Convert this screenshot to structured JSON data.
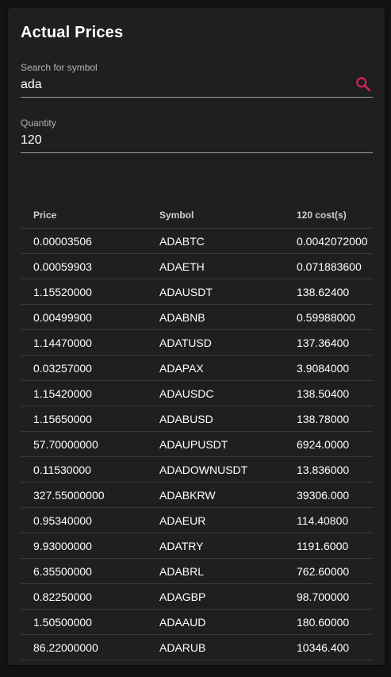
{
  "title": "Actual Prices",
  "search": {
    "label": "Search for symbol",
    "value": "ada",
    "icon": "search-icon",
    "icon_color": "#e91e63"
  },
  "quantity": {
    "label": "Quantity",
    "value": "120"
  },
  "table": {
    "headers": [
      "Price",
      "Symbol",
      "120 cost(s)"
    ],
    "rows": [
      [
        "0.00003506",
        "ADABTC",
        "0.0042072000"
      ],
      [
        "0.00059903",
        "ADAETH",
        "0.071883600"
      ],
      [
        "1.15520000",
        "ADAUSDT",
        "138.62400"
      ],
      [
        "0.00499900",
        "ADABNB",
        "0.59988000"
      ],
      [
        "1.14470000",
        "ADATUSD",
        "137.36400"
      ],
      [
        "0.03257000",
        "ADAPAX",
        "3.9084000"
      ],
      [
        "1.15420000",
        "ADAUSDC",
        "138.50400"
      ],
      [
        "1.15650000",
        "ADABUSD",
        "138.78000"
      ],
      [
        "57.70000000",
        "ADAUPUSDT",
        "6924.0000"
      ],
      [
        "0.11530000",
        "ADADOWNUSDT",
        "13.836000"
      ],
      [
        "327.55000000",
        "ADABKRW",
        "39306.000"
      ],
      [
        "0.95340000",
        "ADAEUR",
        "114.40800"
      ],
      [
        "9.93000000",
        "ADATRY",
        "1191.6000"
      ],
      [
        "6.35500000",
        "ADABRL",
        "762.60000"
      ],
      [
        "0.82250000",
        "ADAGBP",
        "98.700000"
      ],
      [
        "1.50500000",
        "ADAAUD",
        "180.60000"
      ],
      [
        "86.22000000",
        "ADARUB",
        "10346.400"
      ]
    ]
  }
}
